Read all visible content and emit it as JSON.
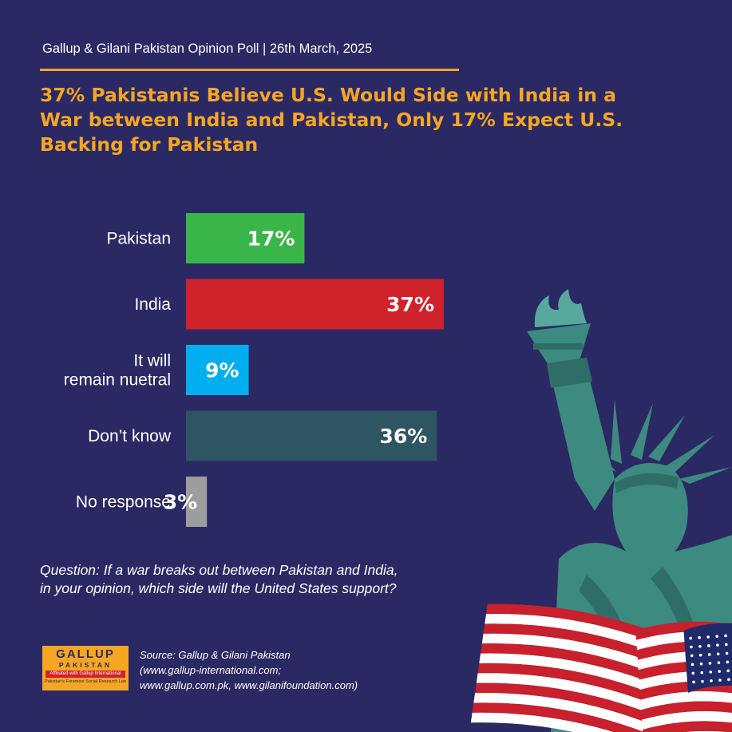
{
  "header": {
    "text": "Gallup & Gilani Pakistan Opinion Poll | 26th March, 2025"
  },
  "title": "37% Pakistanis Believe U.S. Would Side with India in a War between India and Pakistan, Only 17% Expect U.S. Backing for Pakistan",
  "question": "Question: If a war breaks out between Pakistan and India, in your opinion, which side will the United States support?",
  "source": {
    "line1": "Source: Gallup & Gilani Pakistan",
    "line2": "(www.gallup-international.com;",
    "line3": "www.gallup.com.pk, www.gilanifoundation.com)"
  },
  "logo": {
    "main": "GALLUP",
    "sub": "PAKISTAN",
    "affiliation": "Affiliated with Gallup International",
    "tagline": "Pakistan's Foremost Social Research Lab"
  },
  "colors": {
    "background": "#2b2964",
    "accent": "#f5a623",
    "statue": "#3c8a80",
    "flag_red": "#c8202c",
    "flag_blue": "#1f2a6b"
  },
  "chart_data": {
    "type": "bar",
    "orientation": "horizontal",
    "categories": [
      [
        "Pakistan"
      ],
      [
        "India"
      ],
      [
        "It will",
        "remain nuetral"
      ],
      [
        "Don’t know"
      ],
      [
        "No response"
      ]
    ],
    "values": [
      17,
      37,
      9,
      36,
      3
    ],
    "value_labels": [
      "17%",
      "37%",
      "9%",
      "36%",
      "3%"
    ],
    "colors": [
      "#3ab54a",
      "#d0222a",
      "#00aeef",
      "#2f5462",
      "#9d9d9d"
    ],
    "unit": "%",
    "xlim": [
      0,
      37
    ],
    "grid": false,
    "legend": "none"
  },
  "decoration": {
    "statue_icon": "statue-of-liberty-icon",
    "flag_icon": "us-flag-icon"
  }
}
